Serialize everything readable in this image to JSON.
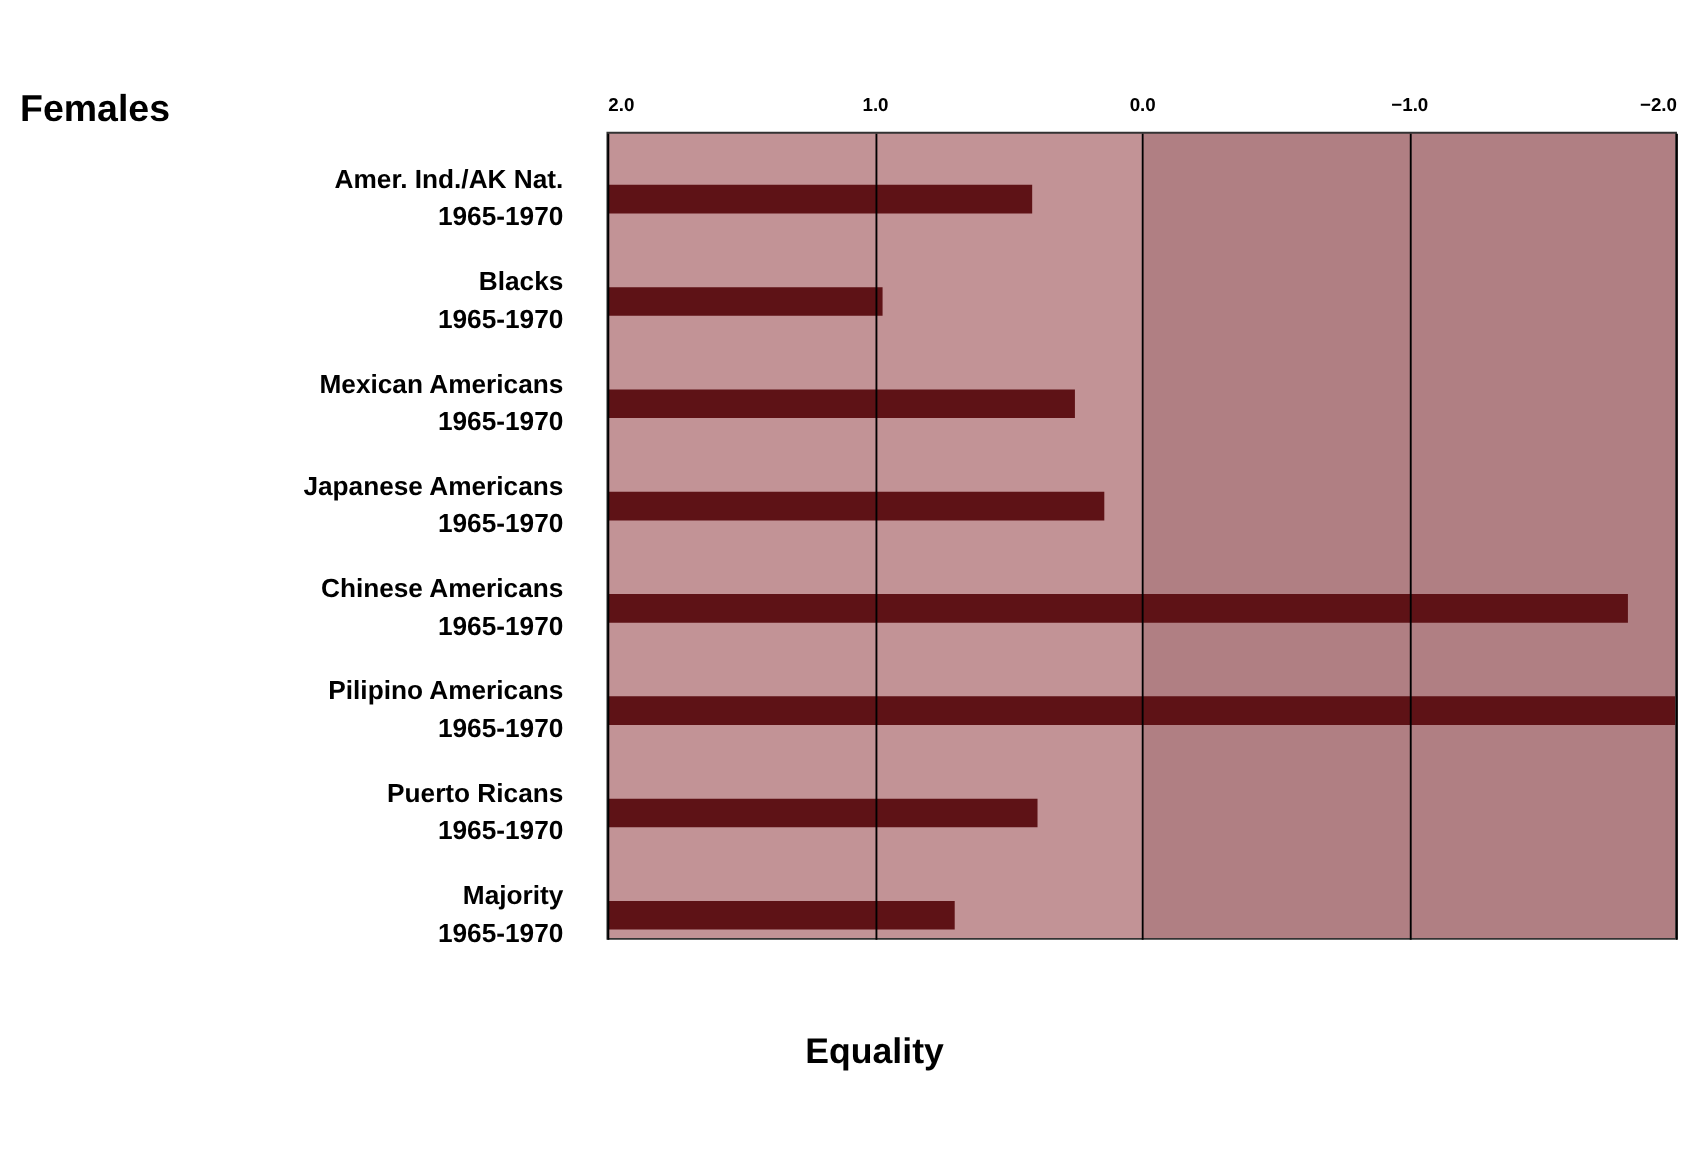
{
  "chart_data": {
    "type": "bar",
    "orientation": "horizontal",
    "title": "Females",
    "categories": [
      "Amer. Ind./AK Nat.\n1965-1970",
      "Blacks\n1965-1970",
      "Mexican Americans\n1965-1970",
      "Japanese Americans\n1965-1970",
      "Chinese Americans\n1965-1970",
      "Pilipino Americans\n1965-1970",
      "Puerto Ricans\n1965-1970",
      "Majority\n1965-1970"
    ],
    "base": [
      2.0,
      2.0,
      2.0,
      2.0,
      2.0,
      2.0,
      2.0,
      2.0
    ],
    "values": [
      -1.59,
      -1.03,
      -1.75,
      -1.86,
      -3.82,
      -4.0,
      -1.61,
      -1.3
    ],
    "color": "#5e1216",
    "xlim": [
      2.0,
      -2.0
    ],
    "xticks": [
      {
        "value": 2.0,
        "label": "2.0"
      },
      {
        "value": 1.0,
        "label": "1.0"
      },
      {
        "value": 0.0,
        "label": "0.0"
      },
      {
        "value": -1.0,
        "label": "−1.0"
      },
      {
        "value": -2.0,
        "label": "−2.0"
      }
    ],
    "grid": "x",
    "bands": [
      {
        "axis": "x",
        "from": 2.0,
        "to": 0.0,
        "color": "#c29396"
      },
      {
        "axis": "x",
        "from": 0.0,
        "to": -2.0,
        "color": "#b07f83"
      }
    ],
    "annotations": [
      "Equality"
    ]
  }
}
